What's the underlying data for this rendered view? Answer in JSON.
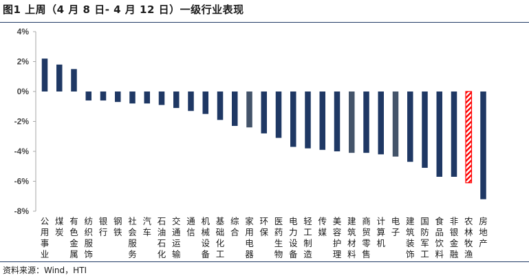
{
  "title": "图1  上周（4 月 8 日- 4 月 12 日）一级行业表现",
  "source": "资料来源：Wind，HTI",
  "chart_data": {
    "type": "bar",
    "title": "图1  上周（4 月 8 日- 4 月 12 日）一级行业表现",
    "ylabel": "",
    "xlabel": "",
    "ylim": [
      -8,
      4
    ],
    "yticks": [
      4,
      2,
      0,
      -2,
      -4,
      -6,
      -8
    ],
    "ytick_labels": [
      "4%",
      "2%",
      "0%",
      "-2%",
      "-4%",
      "-6%",
      "-8%"
    ],
    "grid": false,
    "legend": "none",
    "categories": [
      "公用事业",
      "煤炭",
      "有色金属",
      "纺织服饰",
      "银行",
      "钢铁",
      "社会服务",
      "汽车",
      "石油石化",
      "交通运输",
      "通信",
      "机械设备",
      "基础化工",
      "综合",
      "家用电器",
      "环保",
      "医药生物",
      "电力设备",
      "轻工制造",
      "传媒",
      "美容护理",
      "建筑材料",
      "商贸零售",
      "计算机",
      "电子",
      "建筑装饰",
      "国防军工",
      "食品饮料",
      "非银金融",
      "农林牧渔",
      "房地产"
    ],
    "values": [
      2.2,
      1.8,
      1.5,
      -0.6,
      -0.6,
      -0.7,
      -0.8,
      -0.8,
      -0.9,
      -1.1,
      -1.3,
      -1.5,
      -1.9,
      -2.3,
      -2.4,
      -2.8,
      -3.1,
      -3.7,
      -3.8,
      -3.9,
      -4.0,
      -4.1,
      -4.1,
      -4.2,
      -4.35,
      -4.7,
      -5.1,
      -5.7,
      -5.7,
      -6.1,
      -7.2
    ],
    "colors": {
      "primary": "#1f3864",
      "secondary": "#44546a",
      "highlight": "#ff0000",
      "axis": "#a6a6a6"
    },
    "secondary_indices": [
      14,
      21,
      24
    ],
    "highlight_index": 29
  }
}
